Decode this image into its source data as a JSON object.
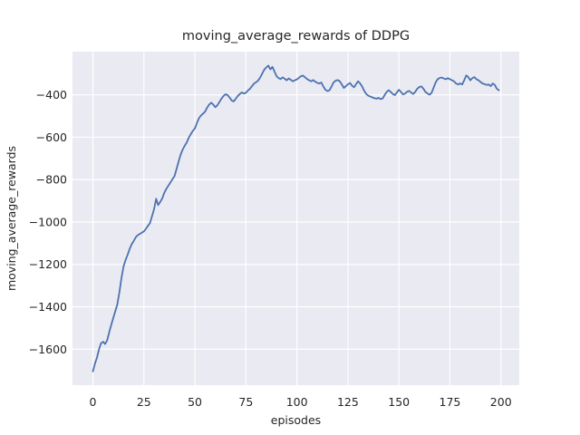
{
  "figure": {
    "background": "#ffffff",
    "axes_background": "#eaeaf2",
    "grid_color": "#ffffff",
    "text_color": "#262626"
  },
  "chart_data": {
    "type": "line",
    "title": "moving_average_rewards of DDPG",
    "xlabel": "episodes",
    "ylabel": "moving_average_rewards",
    "grid": true,
    "legend": "none",
    "xlim": [
      -10,
      209
    ],
    "ylim": [
      -1770,
      -196
    ],
    "xticks": [
      0,
      25,
      50,
      75,
      100,
      125,
      150,
      175,
      200
    ],
    "yticks": [
      -400,
      -600,
      -800,
      -1000,
      -1200,
      -1400,
      -1600
    ],
    "series": [
      {
        "name": "moving_average_rewards",
        "color": "#4c72b0",
        "line_width": 1.8,
        "points": [
          [
            0,
            -1705
          ],
          [
            1,
            -1668
          ],
          [
            2,
            -1640
          ],
          [
            3,
            -1600
          ],
          [
            4,
            -1572
          ],
          [
            5,
            -1565
          ],
          [
            6,
            -1576
          ],
          [
            7,
            -1558
          ],
          [
            8,
            -1520
          ],
          [
            9,
            -1485
          ],
          [
            10,
            -1452
          ],
          [
            11,
            -1420
          ],
          [
            12,
            -1388
          ],
          [
            13,
            -1330
          ],
          [
            14,
            -1265
          ],
          [
            15,
            -1210
          ],
          [
            16,
            -1180
          ],
          [
            17,
            -1155
          ],
          [
            18,
            -1128
          ],
          [
            19,
            -1105
          ],
          [
            20,
            -1090
          ],
          [
            21,
            -1072
          ],
          [
            22,
            -1062
          ],
          [
            23,
            -1056
          ],
          [
            24,
            -1050
          ],
          [
            25,
            -1044
          ],
          [
            26,
            -1032
          ],
          [
            27,
            -1018
          ],
          [
            28,
            -1005
          ],
          [
            29,
            -972
          ],
          [
            30,
            -940
          ],
          [
            31,
            -890
          ],
          [
            32,
            -920
          ],
          [
            33,
            -905
          ],
          [
            34,
            -888
          ],
          [
            35,
            -862
          ],
          [
            36,
            -843
          ],
          [
            37,
            -828
          ],
          [
            38,
            -813
          ],
          [
            39,
            -798
          ],
          [
            40,
            -783
          ],
          [
            41,
            -750
          ],
          [
            42,
            -715
          ],
          [
            43,
            -682
          ],
          [
            44,
            -658
          ],
          [
            45,
            -640
          ],
          [
            46,
            -624
          ],
          [
            47,
            -602
          ],
          [
            48,
            -585
          ],
          [
            49,
            -570
          ],
          [
            50,
            -558
          ],
          [
            51,
            -532
          ],
          [
            52,
            -510
          ],
          [
            53,
            -497
          ],
          [
            54,
            -488
          ],
          [
            55,
            -479
          ],
          [
            56,
            -460
          ],
          [
            57,
            -446
          ],
          [
            58,
            -437
          ],
          [
            59,
            -446
          ],
          [
            60,
            -458
          ],
          [
            61,
            -449
          ],
          [
            62,
            -434
          ],
          [
            63,
            -418
          ],
          [
            64,
            -405
          ],
          [
            65,
            -397
          ],
          [
            66,
            -401
          ],
          [
            67,
            -412
          ],
          [
            68,
            -426
          ],
          [
            69,
            -431
          ],
          [
            70,
            -419
          ],
          [
            71,
            -405
          ],
          [
            72,
            -396
          ],
          [
            73,
            -388
          ],
          [
            74,
            -394
          ],
          [
            75,
            -390
          ],
          [
            76,
            -379
          ],
          [
            77,
            -371
          ],
          [
            78,
            -359
          ],
          [
            79,
            -346
          ],
          [
            80,
            -340
          ],
          [
            81,
            -332
          ],
          [
            82,
            -318
          ],
          [
            83,
            -299
          ],
          [
            84,
            -281
          ],
          [
            85,
            -270
          ],
          [
            86,
            -262
          ],
          [
            87,
            -280
          ],
          [
            88,
            -268
          ],
          [
            89,
            -290
          ],
          [
            90,
            -311
          ],
          [
            91,
            -321
          ],
          [
            92,
            -325
          ],
          [
            93,
            -317
          ],
          [
            94,
            -324
          ],
          [
            95,
            -331
          ],
          [
            96,
            -322
          ],
          [
            97,
            -329
          ],
          [
            98,
            -336
          ],
          [
            99,
            -331
          ],
          [
            100,
            -327
          ],
          [
            101,
            -319
          ],
          [
            102,
            -312
          ],
          [
            103,
            -309
          ],
          [
            104,
            -317
          ],
          [
            105,
            -325
          ],
          [
            106,
            -331
          ],
          [
            107,
            -336
          ],
          [
            108,
            -330
          ],
          [
            109,
            -338
          ],
          [
            110,
            -343
          ],
          [
            111,
            -346
          ],
          [
            112,
            -342
          ],
          [
            113,
            -361
          ],
          [
            114,
            -376
          ],
          [
            115,
            -382
          ],
          [
            116,
            -378
          ],
          [
            117,
            -360
          ],
          [
            118,
            -341
          ],
          [
            119,
            -333
          ],
          [
            120,
            -330
          ],
          [
            121,
            -336
          ],
          [
            122,
            -351
          ],
          [
            123,
            -367
          ],
          [
            124,
            -359
          ],
          [
            125,
            -350
          ],
          [
            126,
            -344
          ],
          [
            127,
            -356
          ],
          [
            128,
            -364
          ],
          [
            129,
            -349
          ],
          [
            130,
            -336
          ],
          [
            131,
            -346
          ],
          [
            132,
            -361
          ],
          [
            133,
            -381
          ],
          [
            134,
            -396
          ],
          [
            135,
            -404
          ],
          [
            136,
            -408
          ],
          [
            137,
            -412
          ],
          [
            138,
            -416
          ],
          [
            139,
            -418
          ],
          [
            140,
            -414
          ],
          [
            141,
            -420
          ],
          [
            142,
            -417
          ],
          [
            143,
            -401
          ],
          [
            144,
            -386
          ],
          [
            145,
            -378
          ],
          [
            146,
            -386
          ],
          [
            147,
            -396
          ],
          [
            148,
            -401
          ],
          [
            149,
            -389
          ],
          [
            150,
            -376
          ],
          [
            151,
            -386
          ],
          [
            152,
            -398
          ],
          [
            153,
            -394
          ],
          [
            154,
            -385
          ],
          [
            155,
            -381
          ],
          [
            156,
            -389
          ],
          [
            157,
            -396
          ],
          [
            158,
            -386
          ],
          [
            159,
            -371
          ],
          [
            160,
            -363
          ],
          [
            161,
            -360
          ],
          [
            162,
            -371
          ],
          [
            163,
            -386
          ],
          [
            164,
            -393
          ],
          [
            165,
            -399
          ],
          [
            166,
            -391
          ],
          [
            167,
            -366
          ],
          [
            168,
            -341
          ],
          [
            169,
            -326
          ],
          [
            170,
            -320
          ],
          [
            171,
            -318
          ],
          [
            172,
            -323
          ],
          [
            173,
            -326
          ],
          [
            174,
            -321
          ],
          [
            175,
            -326
          ],
          [
            176,
            -331
          ],
          [
            177,
            -336
          ],
          [
            178,
            -346
          ],
          [
            179,
            -351
          ],
          [
            180,
            -346
          ],
          [
            181,
            -351
          ],
          [
            182,
            -331
          ],
          [
            183,
            -308
          ],
          [
            184,
            -316
          ],
          [
            185,
            -331
          ],
          [
            186,
            -321
          ],
          [
            187,
            -316
          ],
          [
            188,
            -326
          ],
          [
            189,
            -331
          ],
          [
            190,
            -339
          ],
          [
            191,
            -346
          ],
          [
            192,
            -349
          ],
          [
            193,
            -353
          ],
          [
            194,
            -351
          ],
          [
            195,
            -359
          ],
          [
            196,
            -346
          ],
          [
            197,
            -353
          ],
          [
            198,
            -371
          ],
          [
            199,
            -378
          ]
        ]
      }
    ]
  }
}
